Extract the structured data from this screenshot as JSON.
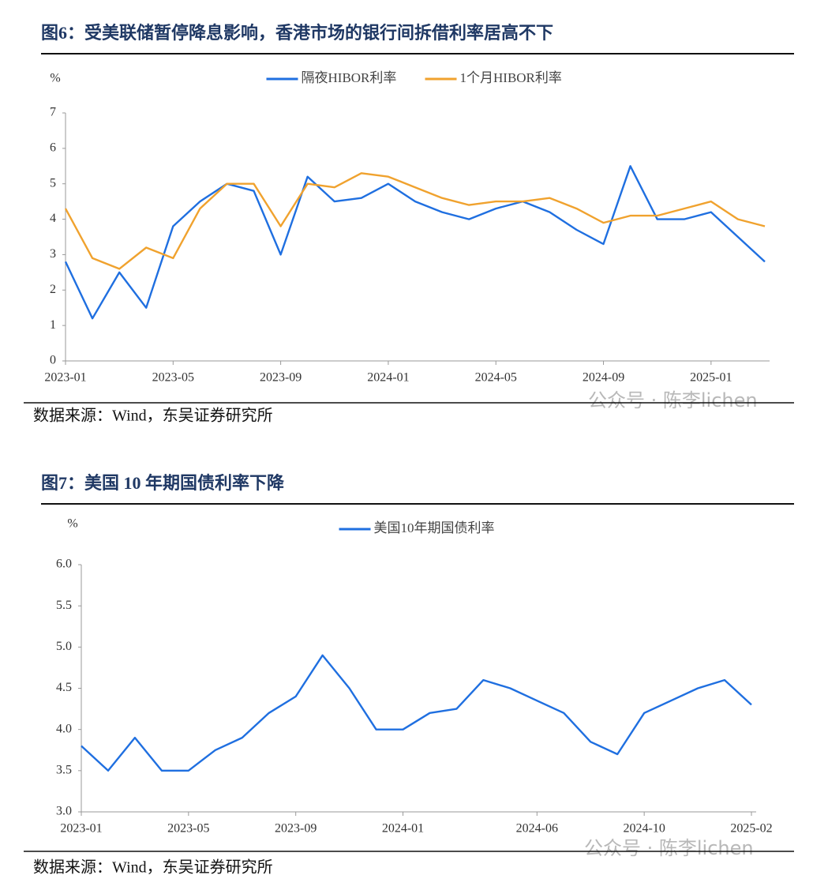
{
  "chart_data": [
    {
      "type": "line",
      "title": "图6：受美联储暂停降息影响，香港市场的银行间拆借利率居高不下",
      "y_label": "%",
      "categories": [
        "2023-01",
        null,
        null,
        null,
        "2023-05",
        null,
        null,
        null,
        "2023-09",
        null,
        null,
        null,
        "2024-01",
        null,
        null,
        null,
        "2024-05",
        null,
        null,
        null,
        "2024-09",
        null,
        null,
        null,
        "2025-01",
        null,
        null
      ],
      "series": [
        {
          "name": "隔夜HIBOR利率",
          "color": "#1f6fe0",
          "values": [
            2.8,
            1.2,
            2.5,
            1.5,
            3.8,
            4.5,
            5.0,
            4.8,
            3.0,
            5.2,
            4.5,
            4.6,
            5.0,
            4.5,
            4.2,
            4.0,
            4.3,
            4.5,
            4.2,
            3.7,
            3.3,
            5.5,
            4.0,
            4.0,
            4.2,
            3.5,
            2.8
          ]
        },
        {
          "name": "1个月HIBOR利率",
          "color": "#f0a22e",
          "values": [
            4.3,
            2.9,
            2.6,
            3.2,
            2.9,
            4.3,
            5.0,
            5.0,
            3.8,
            5.0,
            4.9,
            5.3,
            5.2,
            4.9,
            4.6,
            4.4,
            4.5,
            4.5,
            4.6,
            4.3,
            3.9,
            4.1,
            4.1,
            4.3,
            4.5,
            4.0,
            3.8
          ]
        }
      ],
      "ylim": [
        0,
        7
      ],
      "yticks": [
        0,
        1,
        2,
        3,
        4,
        5,
        6,
        7
      ],
      "grid": false,
      "legend": "top",
      "source": "数据来源：Wind，东吴证券研究所",
      "watermark": "公众号 · 陈李lichen"
    },
    {
      "type": "line",
      "title": "图7：美国 10 年期国债利率下降",
      "y_label": "%",
      "categories": [
        "2023-01",
        null,
        null,
        null,
        "2023-05",
        null,
        null,
        null,
        "2023-09",
        null,
        null,
        null,
        "2024-01",
        null,
        null,
        null,
        null,
        "2024-06",
        null,
        null,
        null,
        "2024-10",
        null,
        null,
        null,
        "2025-02"
      ],
      "series": [
        {
          "name": "美国10年期国债利率",
          "color": "#1f6fe0",
          "values": [
            3.8,
            3.5,
            3.9,
            3.5,
            3.5,
            3.75,
            3.9,
            4.2,
            4.4,
            4.9,
            4.5,
            4.0,
            4.0,
            4.2,
            4.25,
            4.6,
            4.5,
            4.35,
            4.2,
            3.85,
            3.7,
            4.2,
            4.35,
            4.5,
            4.6,
            4.3
          ]
        }
      ],
      "ylim": [
        3,
        6
      ],
      "yticks": [
        {
          "value": 3,
          "label": "3.0"
        },
        {
          "value": 3.5,
          "label": "3.5"
        },
        {
          "value": 4,
          "label": "4.0"
        },
        {
          "value": 4.5,
          "label": "4.5"
        },
        {
          "value": 5,
          "label": "5.0"
        },
        {
          "value": 5.5,
          "label": "5.5"
        },
        {
          "value": 6,
          "label": "6.0"
        }
      ],
      "grid": false,
      "legend": "top",
      "source": "数据来源：Wind，东吴证券研究所",
      "watermark": "公众号 · 陈李lichen"
    }
  ]
}
